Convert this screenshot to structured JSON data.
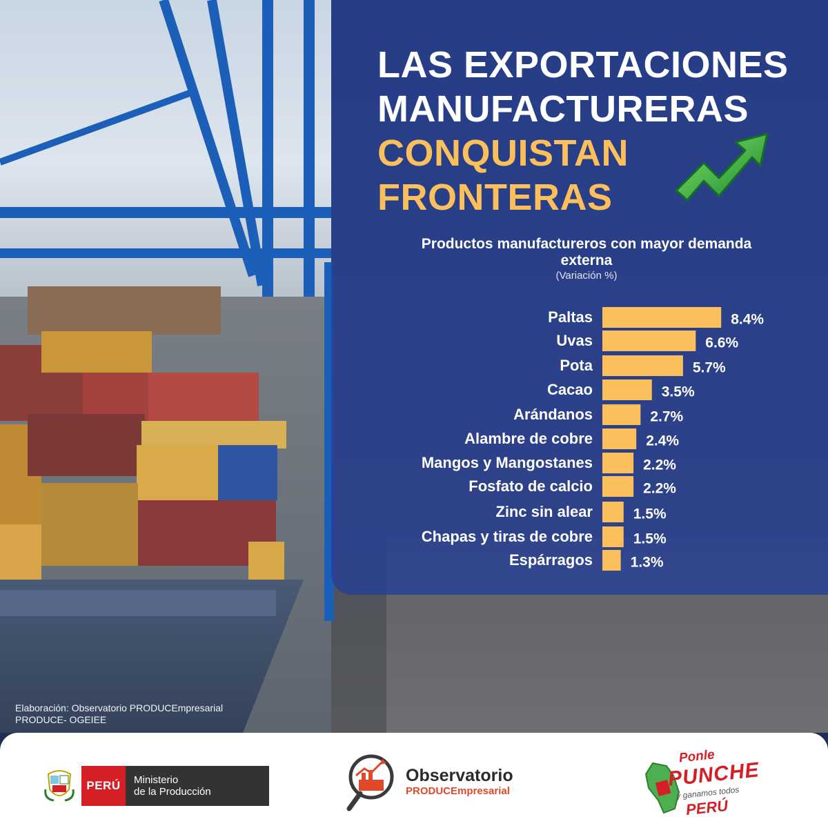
{
  "title": {
    "line1": "LAS EXPORTACIONES",
    "line2": "MANUFACTURERAS",
    "line3": "CONQUISTAN",
    "line4": "FRONTERAS"
  },
  "colors": {
    "panel": "#263e96",
    "accent": "#fbbf5c",
    "text": "#ffffff"
  },
  "chart_data": {
    "type": "bar",
    "orientation": "horizontal",
    "title": "Productos manufactureros con mayor demanda externa",
    "subtitle": "(Variación %)",
    "categories": [
      "Paltas",
      "Uvas",
      "Pota",
      "Cacao",
      "Arándanos",
      "Alambre de cobre",
      "Mangos y Mangostanes",
      "Fosfato de calcio",
      "Zinc sin alear",
      "Chapas y tiras de cobre",
      "Espárragos"
    ],
    "values": [
      8.4,
      6.6,
      5.7,
      3.5,
      2.7,
      2.4,
      2.2,
      2.2,
      1.5,
      1.5,
      1.3
    ],
    "value_labels": [
      "8.4%",
      "6.6%",
      "5.7%",
      "3.5%",
      "2.7%",
      "2.4%",
      "2.2%",
      "2.2%",
      "1.5%",
      "1.5%",
      "1.3%"
    ],
    "grid": false,
    "legend": "none"
  },
  "source": {
    "line1": "Elaboración: Observatorio PRODUCEmpresarial",
    "line2": "PRODUCE- OGEIEE"
  },
  "footer": {
    "peru": "PERÚ",
    "ministry_line1": "Ministerio",
    "ministry_line2": "de la Producción",
    "obs_name": "Observatorio",
    "obs_sub": "PRODUCEmpresarial",
    "punche_1": "Ponle",
    "punche_2": "PUNCHE",
    "punche_3": "y ganamos todos",
    "punche_4": "PERÚ"
  }
}
